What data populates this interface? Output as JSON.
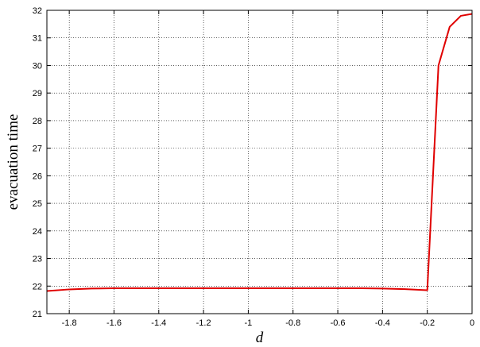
{
  "chart_data": {
    "type": "line",
    "title": "",
    "xlabel": "d",
    "ylabel": "evacuation time",
    "xlim": [
      -1.9,
      0
    ],
    "ylim": [
      21,
      32
    ],
    "grid": true,
    "legend": "none",
    "x_ticks": [
      -1.8,
      -1.6,
      -1.4,
      -1.2,
      -1.0,
      -0.8,
      -0.6,
      -0.4,
      -0.2,
      0
    ],
    "x_tick_labels": [
      "-1.8",
      "-1.6",
      "-1.4",
      "-1.2",
      "-1",
      "-0.8",
      "-0.6",
      "-0.4",
      "-0.2",
      "0"
    ],
    "y_ticks": [
      21,
      22,
      23,
      24,
      25,
      26,
      27,
      28,
      29,
      30,
      31,
      32
    ],
    "y_tick_labels": [
      "21",
      "22",
      "23",
      "24",
      "25",
      "26",
      "27",
      "28",
      "29",
      "30",
      "31",
      "32"
    ],
    "series": [
      {
        "color": "#e00000",
        "points": [
          [
            -1.9,
            21.82
          ],
          [
            -1.8,
            21.88
          ],
          [
            -1.7,
            21.91
          ],
          [
            -1.6,
            21.92
          ],
          [
            -1.5,
            21.92
          ],
          [
            -1.4,
            21.92
          ],
          [
            -1.3,
            21.92
          ],
          [
            -1.2,
            21.92
          ],
          [
            -1.1,
            21.92
          ],
          [
            -1.0,
            21.92
          ],
          [
            -0.9,
            21.92
          ],
          [
            -0.8,
            21.92
          ],
          [
            -0.7,
            21.92
          ],
          [
            -0.6,
            21.92
          ],
          [
            -0.5,
            21.92
          ],
          [
            -0.4,
            21.91
          ],
          [
            -0.3,
            21.89
          ],
          [
            -0.2,
            21.85
          ],
          [
            -0.15,
            30.0
          ],
          [
            -0.1,
            31.4
          ],
          [
            -0.05,
            31.8
          ],
          [
            0,
            31.87
          ]
        ]
      }
    ]
  }
}
